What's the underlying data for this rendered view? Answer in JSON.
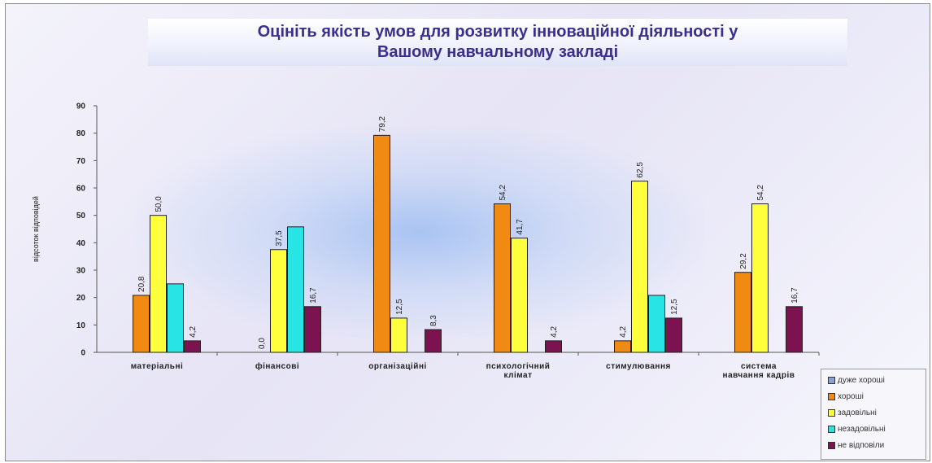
{
  "title_lines": [
    "Оцініть якість умов для розвитку інноваційної діяльності у",
    "Вашому навчальному закладі"
  ],
  "chart_data": {
    "type": "bar",
    "title": "Оцініть якість умов для розвитку інноваційної діяльності у Вашому навчальному закладі",
    "ylabel": "відсоток відповідей",
    "xlabel": "",
    "ylim": [
      0,
      90
    ],
    "yticks": [
      0,
      10,
      20,
      30,
      40,
      50,
      60,
      70,
      80,
      90
    ],
    "grid": false,
    "legend_position": "bottom-right",
    "categories": [
      [
        "матеріальні"
      ],
      [
        "фінансові"
      ],
      [
        "організаційні"
      ],
      [
        "психологічний",
        "клімат"
      ],
      [
        "стимулювання"
      ],
      [
        "система",
        "навчання кадрів"
      ]
    ],
    "series": [
      {
        "name": "дуже хороші",
        "color": "#8aa0d8",
        "values": [
          null,
          null,
          null,
          null,
          null,
          null
        ],
        "labels": [
          "",
          "",
          "",
          "",
          "",
          ""
        ]
      },
      {
        "name": "хороші",
        "color": "#f08a12",
        "values": [
          20.8,
          0.0,
          79.2,
          54.2,
          4.2,
          29.2
        ],
        "labels": [
          "20,8",
          "0,0",
          "79,2",
          "54,2",
          "4,2",
          "29,2"
        ]
      },
      {
        "name": "задовільні",
        "color": "#ffff3c",
        "values": [
          50.0,
          37.5,
          12.5,
          41.7,
          62.5,
          54.2
        ],
        "labels": [
          "50,0",
          "37,5",
          "12,5",
          "41,7",
          "62,5",
          "54,2"
        ]
      },
      {
        "name": "незадовільні",
        "color": "#29e4e4",
        "values": [
          25.0,
          45.8,
          null,
          null,
          20.8,
          null
        ],
        "labels": [
          "",
          "",
          "",
          "",
          "",
          ""
        ]
      },
      {
        "name": "не відповіли",
        "color": "#7c1250",
        "values": [
          4.2,
          16.7,
          8.3,
          4.2,
          12.5,
          16.7
        ],
        "labels": [
          "4,2",
          "16,7",
          "8,3",
          "4,2",
          "12,5",
          "16,7"
        ]
      }
    ]
  }
}
